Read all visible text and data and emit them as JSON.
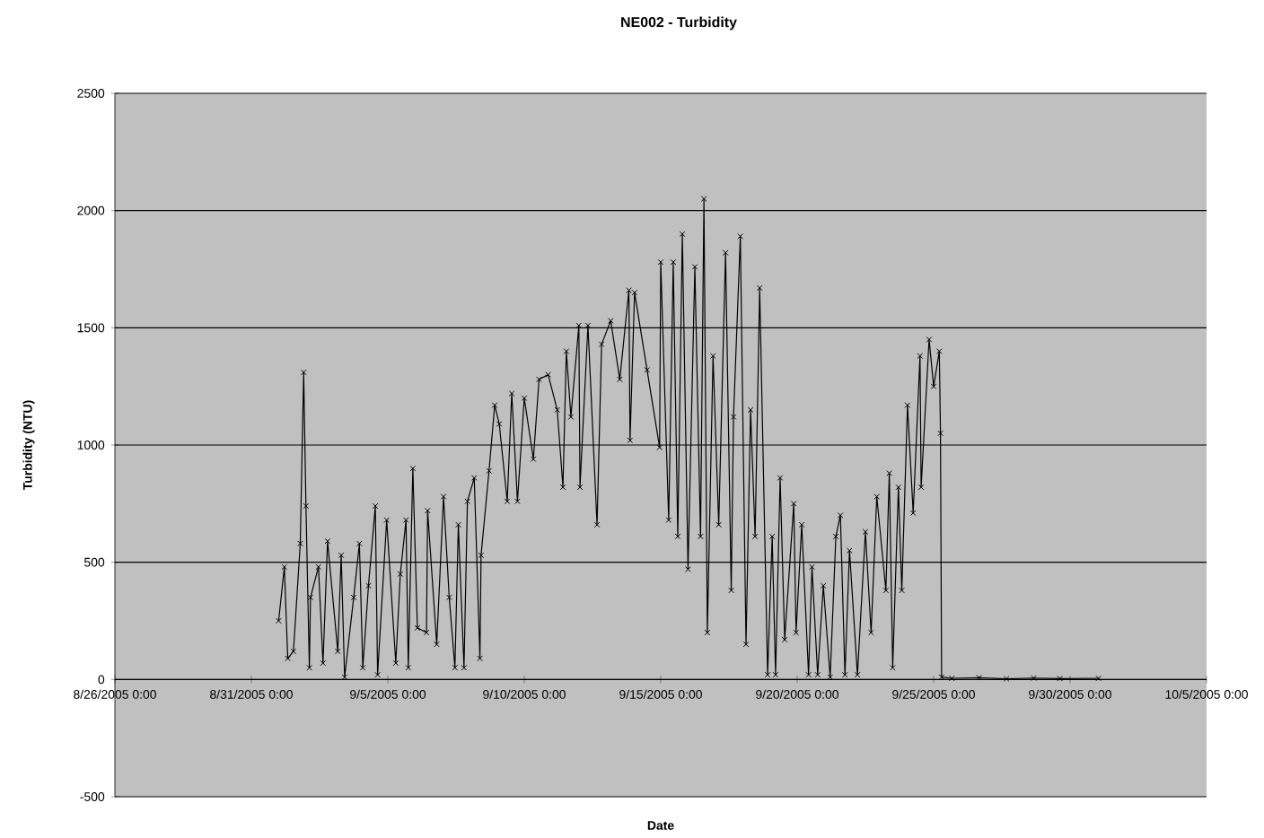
{
  "chart_data": {
    "type": "line",
    "title": "NE002 - Turbidity",
    "xlabel": "Date",
    "ylabel": "Turbidity (NTU)",
    "xlim": [
      "2005-08-26",
      "2005-10-05"
    ],
    "xticks": [
      {
        "value": "2005-08-26",
        "label": "8/26/2005 0:00"
      },
      {
        "value": "2005-08-31",
        "label": "8/31/2005 0:00"
      },
      {
        "value": "2005-09-05",
        "label": "9/5/2005 0:00"
      },
      {
        "value": "2005-09-10",
        "label": "9/10/2005 0:00"
      },
      {
        "value": "2005-09-15",
        "label": "9/15/2005 0:00"
      },
      {
        "value": "2005-09-20",
        "label": "9/20/2005 0:00"
      },
      {
        "value": "2005-09-25",
        "label": "9/25/2005 0:00"
      },
      {
        "value": "2005-09-30",
        "label": "9/30/2005 0:00"
      },
      {
        "value": "2005-10-05",
        "label": "10/5/2005 0:00"
      }
    ],
    "ylim": [
      -500,
      2500
    ],
    "yticks": [
      -500,
      0,
      500,
      1000,
      1500,
      2000,
      2500
    ],
    "grid": "y",
    "marker": "cross",
    "line_style": "solid",
    "series": [
      {
        "color": "#000000",
        "x": [
          "2005-09-01T00:00",
          "2005-09-01T05:00",
          "2005-09-01T08:00",
          "2005-09-01T13:00",
          "2005-09-01T19:00",
          "2005-09-01T22:00",
          "2005-09-02T00:00",
          "2005-09-02T03:00",
          "2005-09-02T04:00",
          "2005-09-02T11:00",
          "2005-09-02T15:00",
          "2005-09-02T19:00",
          "2005-09-03T04:00",
          "2005-09-03T07:00",
          "2005-09-03T10:00",
          "2005-09-03T18:00",
          "2005-09-03T23:00",
          "2005-09-04T02:00",
          "2005-09-04T07:00",
          "2005-09-04T13:00",
          "2005-09-04T15:00",
          "2005-09-04T23:00",
          "2005-09-05T07:00",
          "2005-09-05T11:00",
          "2005-09-05T16:00",
          "2005-09-05T18:00",
          "2005-09-05T22:00",
          "2005-09-06T02:00",
          "2005-09-06T10:00",
          "2005-09-06T11:00",
          "2005-09-06T19:00",
          "2005-09-07T01:00",
          "2005-09-07T06:00",
          "2005-09-07T11:00",
          "2005-09-07T14:00",
          "2005-09-07T19:00",
          "2005-09-07T22:00",
          "2005-09-08T04:00",
          "2005-09-08T09:00",
          "2005-09-08T10:00",
          "2005-09-08T17:00",
          "2005-09-08T22:00",
          "2005-09-09T02:00",
          "2005-09-09T09:00",
          "2005-09-09T13:00",
          "2005-09-09T18:00",
          "2005-09-10T00:00",
          "2005-09-10T08:00",
          "2005-09-10T13:00",
          "2005-09-10T21:00",
          "2005-09-11T05:00",
          "2005-09-11T10:00",
          "2005-09-11T13:00",
          "2005-09-11T17:00",
          "2005-09-12T00:00",
          "2005-09-12T01:00",
          "2005-09-12T08:00",
          "2005-09-12T16:00",
          "2005-09-12T20:00",
          "2005-09-13T04:00",
          "2005-09-13T12:00",
          "2005-09-13T20:00",
          "2005-09-13T21:00",
          "2005-09-14T01:00",
          "2005-09-14T12:00",
          "2005-09-14T23:00",
          "2005-09-15T00:00",
          "2005-09-15T07:00",
          "2005-09-15T11:00",
          "2005-09-15T15:00",
          "2005-09-15T19:00",
          "2005-09-16T00:00",
          "2005-09-16T06:00",
          "2005-09-16T11:00",
          "2005-09-16T14:00",
          "2005-09-16T17:00",
          "2005-09-16T22:00",
          "2005-09-17T03:00",
          "2005-09-17T09:00",
          "2005-09-17T14:00",
          "2005-09-17T16:00",
          "2005-09-17T22:00",
          "2005-09-18T03:00",
          "2005-09-18T07:00",
          "2005-09-18T11:00",
          "2005-09-18T15:00",
          "2005-09-18T22:00",
          "2005-09-19T02:00",
          "2005-09-19T05:00",
          "2005-09-19T09:00",
          "2005-09-19T13:00",
          "2005-09-19T21:00",
          "2005-09-19T23:00",
          "2005-09-20T04:00",
          "2005-09-20T10:00",
          "2005-09-20T13:00",
          "2005-09-20T18:00",
          "2005-09-20T23:00",
          "2005-09-21T05:00",
          "2005-09-21T10:00",
          "2005-09-21T14:00",
          "2005-09-21T18:00",
          "2005-09-21T22:00",
          "2005-09-22T05:00",
          "2005-09-22T12:00",
          "2005-09-22T17:00",
          "2005-09-22T22:00",
          "2005-09-23T06:00",
          "2005-09-23T09:00",
          "2005-09-23T12:00",
          "2005-09-23T17:00",
          "2005-09-23T20:00",
          "2005-09-24T01:00",
          "2005-09-24T06:00",
          "2005-09-24T12:00",
          "2005-09-24T13:00",
          "2005-09-24T20:00",
          "2005-09-25T00:00",
          "2005-09-25T05:00",
          "2005-09-25T06:00",
          "2005-09-25T07:00",
          "2005-09-25T16:00",
          "2005-09-26T16:00",
          "2005-09-27T16:00",
          "2005-09-28T16:00",
          "2005-09-29T15:00",
          "2005-10-01T01:00"
        ],
        "values": [
          250,
          480,
          90,
          120,
          580,
          1310,
          740,
          50,
          350,
          480,
          70,
          590,
          120,
          530,
          10,
          350,
          580,
          50,
          400,
          740,
          20,
          680,
          70,
          450,
          680,
          50,
          900,
          220,
          200,
          720,
          150,
          780,
          350,
          50,
          660,
          50,
          760,
          860,
          90,
          530,
          890,
          1170,
          1090,
          760,
          1220,
          760,
          1200,
          940,
          1280,
          1300,
          1150,
          820,
          1400,
          1120,
          1510,
          820,
          1510,
          660,
          1430,
          1530,
          1280,
          1660,
          1020,
          1650,
          1320,
          990,
          1780,
          680,
          1780,
          610,
          1900,
          470,
          1760,
          610,
          2050,
          200,
          1380,
          660,
          1820,
          380,
          1120,
          1890,
          150,
          1150,
          610,
          1670,
          20,
          610,
          20,
          860,
          170,
          750,
          200,
          660,
          20,
          480,
          20,
          400,
          10,
          610,
          700,
          20,
          550,
          20,
          630,
          200,
          780,
          380,
          880,
          50,
          820,
          380,
          1170,
          710,
          1380,
          820,
          1450,
          1250,
          1400,
          1050,
          10,
          5,
          8,
          3,
          6,
          4,
          5
        ]
      }
    ]
  }
}
